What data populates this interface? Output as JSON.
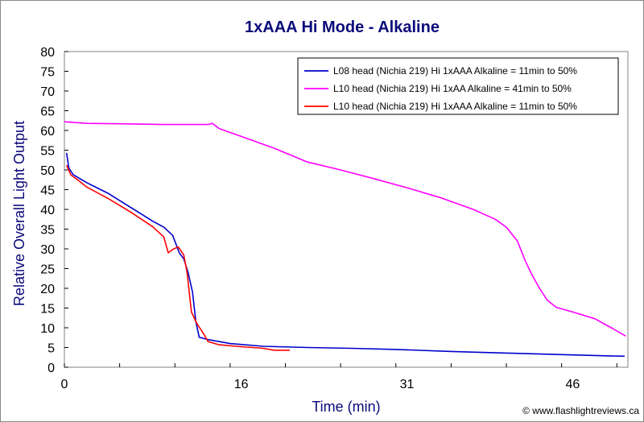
{
  "chart_data": {
    "type": "line",
    "title": "1xAAA Hi Mode - Alkaline",
    "xlabel": "Time (min)",
    "ylabel": "Relative Overall Light Output",
    "xlim": [
      0,
      51
    ],
    "ylim": [
      0,
      80
    ],
    "xticks": [
      0,
      16,
      31,
      46
    ],
    "yticks": [
      0,
      5,
      10,
      15,
      20,
      25,
      30,
      35,
      40,
      45,
      50,
      55,
      60,
      65,
      70,
      75,
      80
    ],
    "grid": false,
    "legend_position": "top-right",
    "credit": "© www.flashlightreviews.ca",
    "series": [
      {
        "name": "L08 head (Nichia 219) Hi 1xAAA Alkaline = 11min to 50%",
        "color": "#0000cc",
        "points": [
          [
            0.2,
            54.3
          ],
          [
            0.4,
            50.5
          ],
          [
            0.8,
            48.8
          ],
          [
            2,
            46.8
          ],
          [
            4,
            44.0
          ],
          [
            6,
            40.5
          ],
          [
            8,
            37.0
          ],
          [
            9,
            35.5
          ],
          [
            9.8,
            33.4
          ],
          [
            10.4,
            29.0
          ],
          [
            10.8,
            27.5
          ],
          [
            11.2,
            24.0
          ],
          [
            11.6,
            19.0
          ],
          [
            11.9,
            11.5
          ],
          [
            12.2,
            7.6
          ],
          [
            13,
            7.0
          ],
          [
            15,
            6.0
          ],
          [
            18,
            5.3
          ],
          [
            22,
            5.0
          ],
          [
            26,
            4.8
          ],
          [
            30,
            4.5
          ],
          [
            35,
            4.0
          ],
          [
            40,
            3.6
          ],
          [
            45,
            3.2
          ],
          [
            49,
            2.9
          ],
          [
            50.7,
            2.8
          ]
        ]
      },
      {
        "name": "L10 head (Nichia 219) Hi 1xAA Alkaline = 41min to 50%",
        "color": "#ff00ff",
        "points": [
          [
            0,
            62.2
          ],
          [
            2,
            61.8
          ],
          [
            5,
            61.7
          ],
          [
            9,
            61.5
          ],
          [
            12,
            61.5
          ],
          [
            13,
            61.5
          ],
          [
            13.4,
            61.8
          ],
          [
            14,
            60.5
          ],
          [
            16,
            58.5
          ],
          [
            19,
            55.5
          ],
          [
            22,
            52.0
          ],
          [
            25,
            50.0
          ],
          [
            28,
            47.8
          ],
          [
            31,
            45.5
          ],
          [
            34,
            43.0
          ],
          [
            37,
            40.0
          ],
          [
            39,
            37.5
          ],
          [
            40,
            35.5
          ],
          [
            41,
            32.0
          ],
          [
            41.7,
            27.0
          ],
          [
            42.3,
            23.5
          ],
          [
            43,
            20.0
          ],
          [
            43.7,
            17.0
          ],
          [
            44.5,
            15.2
          ],
          [
            46,
            14.0
          ],
          [
            48,
            12.3
          ],
          [
            49.5,
            10.0
          ],
          [
            50.8,
            7.9
          ]
        ]
      },
      {
        "name": "L10 head (Nichia 219) Hi 1xAAA Alkaline = 11min to 50%",
        "color": "#ff0000",
        "points": [
          [
            0.2,
            51.2
          ],
          [
            0.6,
            48.7
          ],
          [
            1.2,
            47.5
          ],
          [
            2,
            45.7
          ],
          [
            4,
            42.7
          ],
          [
            6,
            39.3
          ],
          [
            8,
            35.6
          ],
          [
            9,
            33.0
          ],
          [
            9.4,
            29.0
          ],
          [
            9.9,
            30.0
          ],
          [
            10.3,
            30.5
          ],
          [
            10.8,
            28.5
          ],
          [
            11.1,
            24.0
          ],
          [
            11.5,
            14.0
          ],
          [
            12,
            11.0
          ],
          [
            12.6,
            8.5
          ],
          [
            13,
            6.5
          ],
          [
            14,
            5.7
          ],
          [
            16,
            5.2
          ],
          [
            18,
            4.8
          ],
          [
            19,
            4.3
          ],
          [
            20.4,
            4.3
          ]
        ]
      }
    ]
  }
}
